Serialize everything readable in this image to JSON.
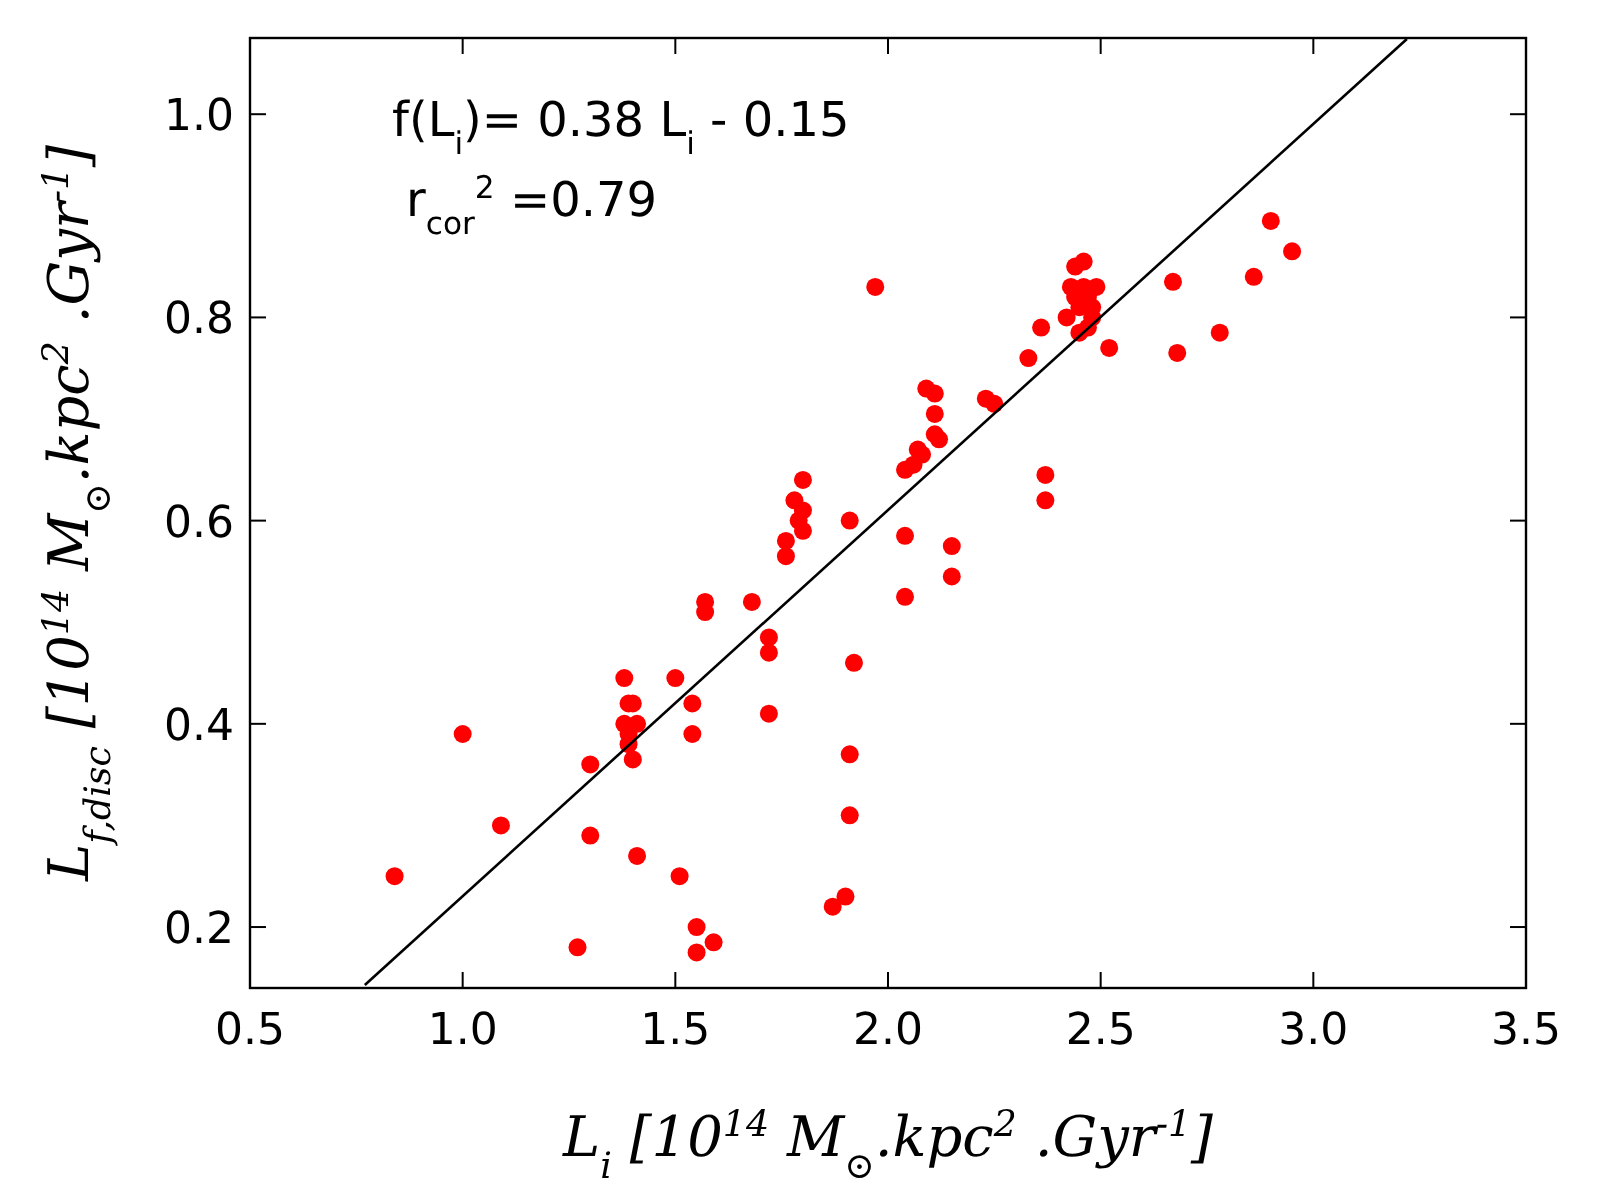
{
  "chart_data": {
    "type": "scatter",
    "xlabel": "L$_{i}$  [10$^{14}$ M$_{⊙}$.kpc$^{2}$ .Gyr$^{-1}$]",
    "ylabel": "L$_{f,disc}$  [10$^{14}$ M$_{⊙}$.kpc$^{2}$ .Gyr$^{-1}$]",
    "annotations": [
      "f(L$_{i}$)= 0.38 L$_{i}$ - 0.15",
      "r$_{cor}$$^{2}$ =0.79"
    ],
    "xlim": [
      0.5,
      3.5
    ],
    "xticks": [
      {
        "value": 0.5,
        "label": "0.5"
      },
      {
        "value": 1,
        "label": "1.0"
      },
      {
        "value": 1.5,
        "label": "1.5"
      },
      {
        "value": 2,
        "label": "2.0"
      },
      {
        "value": 2.5,
        "label": "2.5"
      },
      {
        "value": 3,
        "label": "3.0"
      },
      {
        "value": 3.5,
        "label": "3.5"
      }
    ],
    "ylim": [
      0.14,
      1.075
    ],
    "yticks": [
      0.2,
      0.4,
      0.6,
      0.8,
      {
        "value": 1,
        "label": "1.0"
      }
    ],
    "grid": false,
    "marker": "circle",
    "series": [
      {
        "color": "#ff0000",
        "x": [
          0.84,
          1.0,
          1.09,
          1.27,
          1.3,
          1.3,
          1.38,
          1.39,
          1.38,
          1.39,
          1.39,
          1.4,
          1.4,
          1.41,
          1.41,
          1.5,
          1.51,
          1.54,
          1.54,
          1.55,
          1.55,
          1.59,
          1.57,
          1.57,
          1.68,
          1.72,
          1.72,
          1.72,
          1.76,
          1.76,
          1.78,
          1.79,
          1.8,
          1.8,
          1.8,
          1.91,
          1.97,
          2.04,
          2.04,
          2.15,
          2.15,
          1.91,
          1.91,
          1.92,
          1.87,
          1.9,
          2.09,
          2.11,
          2.11,
          2.11,
          2.08,
          2.06,
          2.07,
          2.12,
          2.04,
          2.23,
          2.25,
          2.37,
          2.37,
          2.33,
          2.36,
          2.46,
          2.44,
          2.43,
          2.44,
          2.45,
          2.47,
          2.48,
          2.47,
          2.48,
          2.49,
          2.45,
          2.46,
          2.42,
          2.52,
          2.67,
          2.68,
          2.78,
          2.86,
          2.9,
          2.95
        ],
        "values": [
          0.25,
          0.39,
          0.3,
          0.18,
          0.36,
          0.29,
          0.445,
          0.42,
          0.4,
          0.39,
          0.38,
          0.365,
          0.42,
          0.4,
          0.27,
          0.445,
          0.25,
          0.42,
          0.39,
          0.2,
          0.175,
          0.185,
          0.52,
          0.51,
          0.52,
          0.485,
          0.47,
          0.41,
          0.565,
          0.58,
          0.62,
          0.6,
          0.59,
          0.64,
          0.61,
          0.6,
          0.83,
          0.585,
          0.525,
          0.575,
          0.545,
          0.31,
          0.37,
          0.46,
          0.22,
          0.23,
          0.73,
          0.725,
          0.705,
          0.685,
          0.665,
          0.655,
          0.67,
          0.68,
          0.65,
          0.72,
          0.715,
          0.645,
          0.62,
          0.76,
          0.79,
          0.855,
          0.85,
          0.83,
          0.82,
          0.81,
          0.79,
          0.8,
          0.82,
          0.81,
          0.83,
          0.785,
          0.83,
          0.8,
          0.77,
          0.835,
          0.765,
          0.785,
          0.84,
          0.895,
          0.865
        ]
      },
      {
        "type": "line",
        "color": "#000000",
        "x": [
          0.77,
          3.22
        ],
        "values": [
          0.143,
          1.074
        ],
        "marker": "none",
        "line_style": "solid"
      }
    ]
  }
}
